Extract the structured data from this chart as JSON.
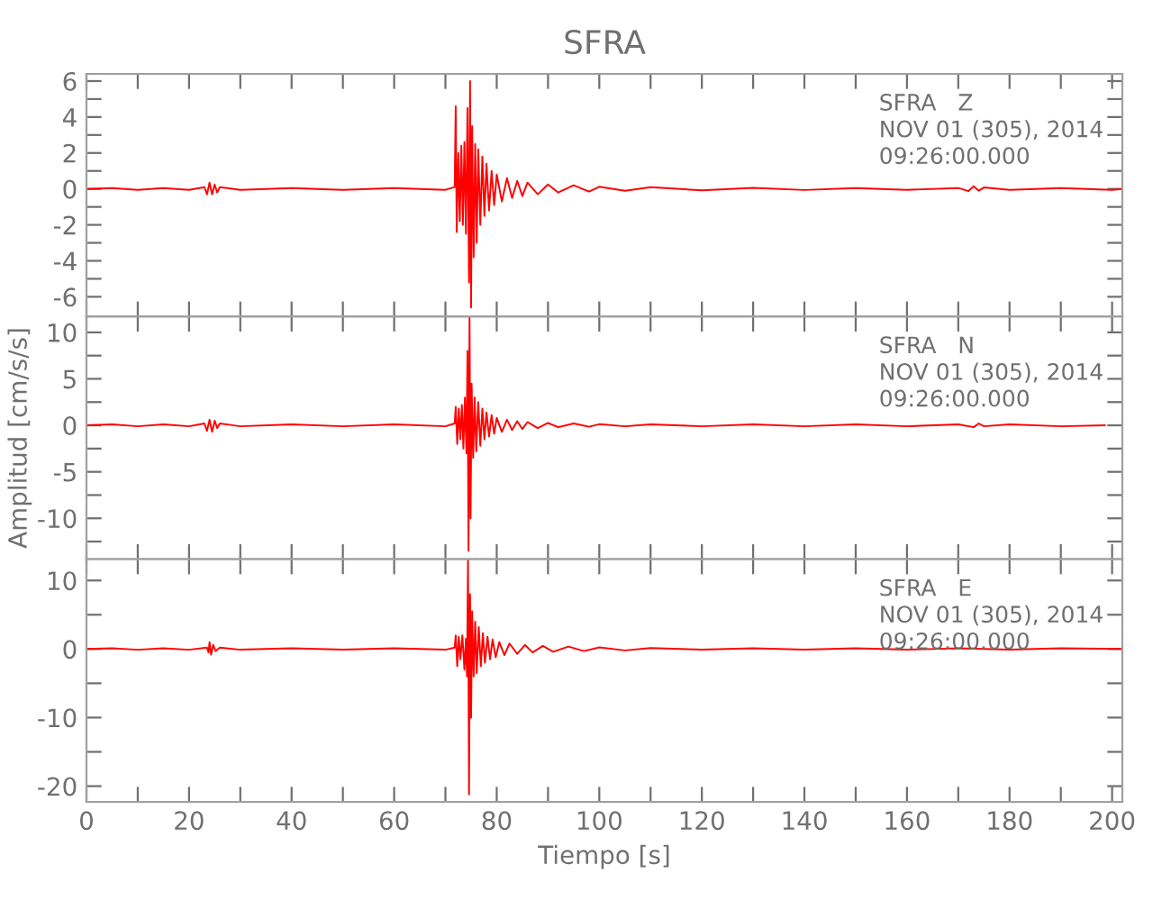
{
  "chart_data": [
    {
      "type": "line",
      "title": "SFRA",
      "tick_labels": "y",
      "grid": false,
      "marker": "none",
      "line_style": "solid",
      "annotations": [
        "SFRA   Z",
        "NOV 01 (305), 2014",
        "09:26:00.000"
      ],
      "xlim": [
        0,
        202
      ],
      "xticks": [
        0,
        {
          "value": 10,
          "label": null
        },
        20,
        {
          "value": 30,
          "label": null
        },
        40,
        {
          "value": 50,
          "label": null
        },
        60,
        {
          "value": 70,
          "label": null
        },
        80,
        {
          "value": 90,
          "label": null
        },
        100,
        {
          "value": 110,
          "label": null
        },
        120,
        {
          "value": 130,
          "label": null
        },
        140,
        {
          "value": 150,
          "label": null
        },
        160,
        {
          "value": 170,
          "label": null
        },
        180,
        {
          "value": 190,
          "label": null
        },
        200
      ],
      "ylim": [
        -7.1,
        6.4
      ],
      "yticks": [
        -6,
        {
          "value": -5,
          "label": null
        },
        -4,
        {
          "value": -3,
          "label": null
        },
        -2,
        {
          "value": -1,
          "label": null
        },
        0,
        {
          "value": 1,
          "label": null
        },
        2,
        {
          "value": 3,
          "label": null
        },
        4,
        {
          "value": 5,
          "label": null
        },
        6
      ],
      "series": [
        {
          "color": "#ff0000",
          "x": [
            0,
            5,
            10,
            15,
            20,
            23,
            23.5,
            24,
            24.5,
            25,
            25.5,
            26,
            30,
            40,
            50,
            60,
            70,
            71.8,
            72,
            72.2,
            72.5,
            72.8,
            73.1,
            73.4,
            73.7,
            74,
            74.3,
            74.6,
            74.8,
            75,
            75.2,
            75.5,
            75.8,
            76.1,
            76.4,
            76.8,
            77.2,
            77.6,
            78,
            78.5,
            79,
            79.5,
            80,
            81,
            82,
            83,
            84,
            85,
            86,
            88,
            90,
            92,
            95,
            98,
            100,
            105,
            110,
            120,
            130,
            140,
            150,
            160,
            170,
            172,
            173,
            174,
            175,
            180,
            190,
            200,
            202
          ],
          "values": [
            0,
            0.05,
            -0.05,
            0.05,
            -0.05,
            0.1,
            -0.3,
            0.35,
            -0.3,
            0.25,
            -0.2,
            0.1,
            -0.05,
            0.05,
            -0.05,
            0.05,
            -0.05,
            0.1,
            4.6,
            -2.4,
            2.0,
            -1.8,
            2.4,
            -2.0,
            2.6,
            -2.5,
            4.5,
            -5.2,
            6.0,
            -6.6,
            3.5,
            -3.8,
            2.5,
            -3.0,
            2.2,
            -2.0,
            1.8,
            -1.5,
            1.4,
            -1.2,
            1.0,
            -0.9,
            0.8,
            -0.7,
            0.6,
            -0.5,
            0.45,
            -0.4,
            0.35,
            -0.3,
            0.25,
            -0.2,
            0.2,
            -0.15,
            0.12,
            -0.1,
            0.1,
            -0.08,
            0.06,
            -0.06,
            0.05,
            -0.05,
            0.05,
            -0.12,
            0.15,
            -0.1,
            0.08,
            -0.05,
            0.05,
            -0.05,
            0
          ]
        }
      ]
    },
    {
      "type": "line",
      "ylabel": "Amplitud [cm/s/s]",
      "tick_labels": "y",
      "grid": false,
      "marker": "none",
      "line_style": "solid",
      "annotations": [
        "SFRA   N",
        "NOV 01 (305), 2014",
        "09:26:00.000"
      ],
      "xlim": [
        0,
        202
      ],
      "xticks": [
        0,
        {
          "value": 10,
          "label": null
        },
        20,
        {
          "value": 30,
          "label": null
        },
        40,
        {
          "value": 50,
          "label": null
        },
        60,
        {
          "value": 70,
          "label": null
        },
        80,
        {
          "value": 90,
          "label": null
        },
        100,
        {
          "value": 110,
          "label": null
        },
        120,
        {
          "value": 130,
          "label": null
        },
        140,
        {
          "value": 150,
          "label": null
        },
        160,
        {
          "value": 170,
          "label": null
        },
        180,
        {
          "value": 190,
          "label": null
        },
        200
      ],
      "ylim": [
        -14.4,
        11.7
      ],
      "yticks": [
        {
          "value": -12.5,
          "label": null
        },
        -10,
        {
          "value": -7.5,
          "label": null
        },
        -5,
        {
          "value": -2.5,
          "label": null
        },
        0,
        {
          "value": 2.5,
          "label": null
        },
        5,
        {
          "value": 7.5,
          "label": null
        },
        10
      ],
      "series": [
        {
          "color": "#ff0000",
          "x": [
            0,
            5,
            10,
            15,
            20,
            23,
            23.5,
            24,
            24.5,
            25,
            25.5,
            26,
            30,
            40,
            50,
            60,
            70,
            71.8,
            72,
            72.3,
            72.6,
            72.9,
            73.2,
            73.5,
            73.8,
            74.1,
            74.3,
            74.5,
            74.7,
            74.9,
            75.1,
            75.4,
            75.7,
            76,
            76.4,
            76.8,
            77.2,
            77.6,
            78,
            78.5,
            79,
            79.5,
            80,
            81,
            82,
            83,
            84,
            85,
            86,
            88,
            90,
            92,
            95,
            98,
            100,
            105,
            110,
            120,
            130,
            140,
            150,
            160,
            170,
            173,
            174,
            175,
            180,
            190,
            198.6
          ],
          "values": [
            0,
            0.1,
            -0.1,
            0.1,
            -0.1,
            0.2,
            -0.6,
            0.6,
            -0.7,
            0.5,
            -0.3,
            0.2,
            -0.1,
            0.1,
            -0.1,
            0.1,
            -0.1,
            0.2,
            2.0,
            -2.0,
            1.8,
            -1.5,
            2.2,
            -2.5,
            3.0,
            -3.0,
            8.0,
            -13.5,
            11.7,
            -10,
            4.5,
            -3.5,
            3.0,
            -2.8,
            2.5,
            -2.2,
            1.8,
            -1.5,
            1.4,
            -1.2,
            1.1,
            -0.9,
            0.8,
            -0.7,
            0.6,
            -0.5,
            0.45,
            -0.4,
            0.35,
            -0.3,
            0.25,
            -0.2,
            0.2,
            -0.15,
            0.12,
            -0.1,
            0.1,
            -0.1,
            0.1,
            -0.1,
            0.1,
            -0.1,
            0.1,
            -0.2,
            0.2,
            -0.1,
            0.1,
            -0.1,
            0
          ]
        }
      ]
    },
    {
      "type": "line",
      "xlabel": "Tiempo [s]",
      "grid": false,
      "marker": "none",
      "line_style": "solid",
      "annotations": [
        "SFRA   E",
        "NOV 01 (305), 2014",
        "09:26:00.000"
      ],
      "xlim": [
        0,
        202
      ],
      "xticks": [
        0,
        {
          "value": 10,
          "label": null
        },
        20,
        {
          "value": 30,
          "label": null
        },
        40,
        {
          "value": 50,
          "label": null
        },
        60,
        {
          "value": 70,
          "label": null
        },
        80,
        {
          "value": 90,
          "label": null
        },
        100,
        {
          "value": 110,
          "label": null
        },
        120,
        {
          "value": 130,
          "label": null
        },
        140,
        {
          "value": 150,
          "label": null
        },
        160,
        {
          "value": 170,
          "label": null
        },
        180,
        {
          "value": 190,
          "label": null
        },
        200
      ],
      "ylim": [
        -22.3,
        13.1
      ],
      "yticks": [
        -20,
        {
          "value": -15,
          "label": null
        },
        -10,
        {
          "value": -5,
          "label": null
        },
        0,
        {
          "value": 5,
          "label": null
        },
        10
      ],
      "series": [
        {
          "color": "#ff0000",
          "x": [
            0,
            5,
            10,
            15,
            20,
            23.5,
            23.8,
            24,
            24.3,
            24.7,
            25.2,
            26,
            30,
            40,
            50,
            60,
            70,
            71.8,
            72,
            72.3,
            72.6,
            72.9,
            73.3,
            73.7,
            74,
            74.2,
            74.4,
            74.6,
            74.8,
            75,
            75.2,
            75.5,
            75.8,
            76.1,
            76.5,
            76.9,
            77.3,
            77.7,
            78.2,
            78.7,
            79.2,
            79.8,
            80.5,
            81.5,
            82.5,
            84,
            85.5,
            87,
            89,
            91,
            94,
            97,
            100,
            105,
            110,
            120,
            130,
            140,
            150,
            160,
            170,
            180,
            190,
            202
          ],
          "values": [
            0,
            0.1,
            -0.1,
            0.1,
            -0.1,
            0.2,
            -0.5,
            1.0,
            -0.8,
            0.6,
            -0.3,
            0.2,
            -0.1,
            0.1,
            -0.1,
            0.1,
            -0.1,
            0.2,
            2.0,
            -2.5,
            1.8,
            -1.5,
            2.0,
            -3.0,
            1.5,
            -4,
            13.1,
            -21.2,
            8,
            -10,
            5.5,
            -4,
            4,
            -3.5,
            3.2,
            -2.5,
            2.3,
            -2.0,
            1.8,
            -1.5,
            1.4,
            -1.2,
            1.0,
            -0.9,
            0.8,
            -0.7,
            0.6,
            -0.5,
            0.45,
            -0.4,
            0.35,
            -0.3,
            0.25,
            -0.2,
            0.15,
            -0.1,
            0.1,
            -0.1,
            0.1,
            -0.1,
            0.1,
            -0.1,
            0.1,
            0
          ]
        }
      ]
    }
  ]
}
